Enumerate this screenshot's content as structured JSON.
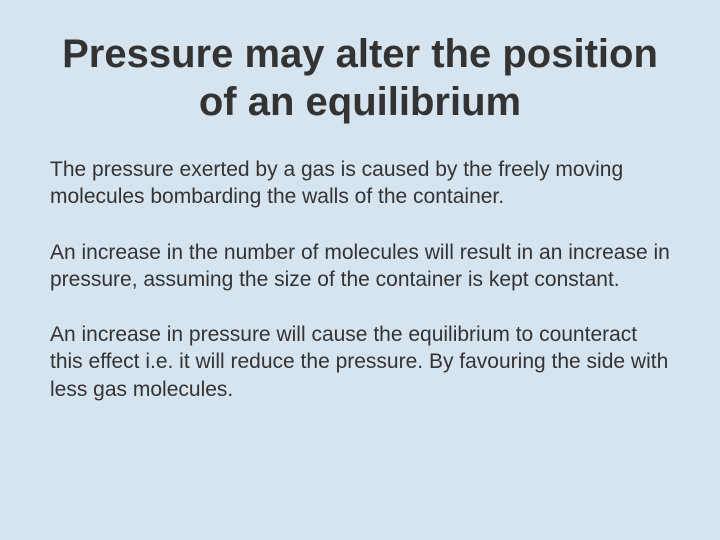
{
  "slide": {
    "title": "Pressure may alter the position of an equilibrium",
    "paragraph1": "The pressure exerted by a gas is caused by the freely moving molecules bombarding the walls of the container.",
    "paragraph2": "An increase in the number of molecules will result in an increase in pressure, assuming the size of the container is kept constant.",
    "paragraph3": "An increase in pressure will cause the equilibrium to counteract this effect i.e. it will reduce the pressure. By favouring the side with less gas molecules.",
    "background_color": "#d6e4f0",
    "text_color": "#333333",
    "title_fontsize": 40,
    "body_fontsize": 21,
    "font_family": "Comic Sans MS"
  }
}
